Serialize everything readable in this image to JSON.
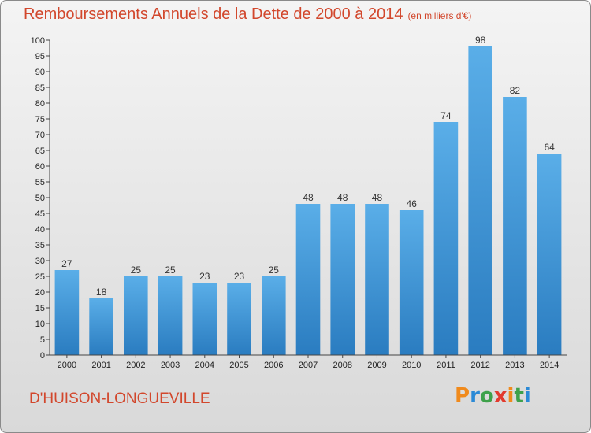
{
  "header": {
    "title": "Remboursements Annuels de la Dette de 2000 à 2014",
    "subtitle": "(en milliers d'€)"
  },
  "footer": {
    "town": "D'HUISON-LONGUEVILLE",
    "logo": "Proxiti"
  },
  "colors": {
    "bar_top": "#5aaee8",
    "bar_bottom": "#2a7cc0",
    "title": "#d2472c"
  },
  "chart_data": {
    "type": "bar",
    "title": "Remboursements Annuels de la Dette de 2000 à 2014",
    "subtitle": "(en milliers d'€)",
    "categories": [
      "2000",
      "2001",
      "2002",
      "2003",
      "2004",
      "2005",
      "2006",
      "2007",
      "2008",
      "2009",
      "2010",
      "2011",
      "2012",
      "2013",
      "2014"
    ],
    "values": [
      27,
      18,
      25,
      25,
      23,
      23,
      25,
      48,
      48,
      48,
      46,
      74,
      98,
      82,
      64
    ],
    "ylim": [
      0,
      100
    ],
    "ytick_step": 5,
    "grid": false,
    "legend": "none"
  }
}
